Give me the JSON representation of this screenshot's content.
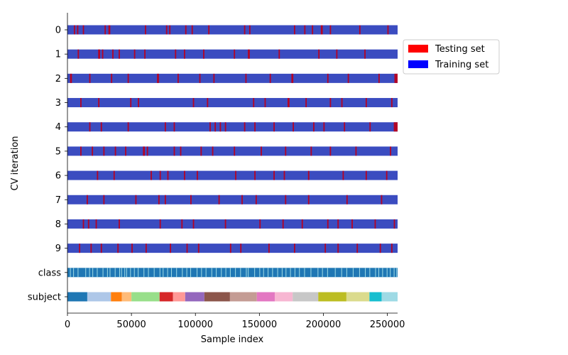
{
  "chart_data": {
    "type": "heatmap",
    "xlabel": "Sample index",
    "ylabel": "CV iteration",
    "xlim": [
      0,
      258000
    ],
    "xticks": [
      "0",
      "50000",
      "100000",
      "150000",
      "200000",
      "250000"
    ],
    "xtick_values": [
      0,
      50000,
      100000,
      150000,
      200000,
      250000
    ],
    "rows": [
      "0",
      "1",
      "2",
      "3",
      "4",
      "5",
      "6",
      "7",
      "8",
      "9",
      "class",
      "subject"
    ],
    "grid": false,
    "legend_position": "outside-right-top",
    "legend": [
      {
        "label": "Testing set",
        "color": "#ff0000"
      },
      {
        "label": "Training set",
        "color": "#0000ff"
      }
    ],
    "colors": {
      "training": "#3b4cc0",
      "testing": "#b40426",
      "class_base": "#1f77b4",
      "class_alt": "#9edae5"
    },
    "n_samples": 258000,
    "test_fraction": 0.1,
    "test_sets": [
      [
        [
          5000,
          6000
        ],
        [
          7500,
          8500
        ],
        [
          12000,
          13000
        ],
        [
          29000,
          30000
        ],
        [
          32000,
          33500
        ],
        [
          60500,
          61500
        ],
        [
          77000,
          78000
        ],
        [
          79500,
          80500
        ],
        [
          92000,
          93000
        ],
        [
          97000,
          98000
        ],
        [
          110000,
          111000
        ],
        [
          138000,
          139000
        ],
        [
          142000,
          143000
        ],
        [
          177000,
          178000
        ],
        [
          185000,
          186000
        ],
        [
          191000,
          192000
        ],
        [
          198000,
          199500
        ],
        [
          205000,
          206000
        ],
        [
          228000,
          229000
        ],
        [
          250000,
          251000
        ]
      ],
      [
        [
          8000,
          9000
        ],
        [
          24000,
          25500
        ],
        [
          27000,
          28000
        ],
        [
          35000,
          36000
        ],
        [
          40000,
          41000
        ],
        [
          52000,
          53000
        ],
        [
          60000,
          61000
        ],
        [
          84000,
          85000
        ],
        [
          91000,
          92000
        ],
        [
          106000,
          107000
        ],
        [
          130000,
          131000
        ],
        [
          141000,
          142500
        ],
        [
          165000,
          166000
        ],
        [
          196000,
          197000
        ],
        [
          210000,
          211000
        ],
        [
          232000,
          233000
        ]
      ],
      [
        [
          2000,
          3500
        ],
        [
          17000,
          18000
        ],
        [
          34000,
          35000
        ],
        [
          47000,
          48000
        ],
        [
          70000,
          71500
        ],
        [
          86000,
          87000
        ],
        [
          103000,
          104000
        ],
        [
          114000,
          115000
        ],
        [
          139000,
          140000
        ],
        [
          158000,
          159000
        ],
        [
          175000,
          176500
        ],
        [
          203000,
          204000
        ],
        [
          219000,
          220000
        ],
        [
          243000,
          244000
        ],
        [
          255500,
          258000
        ]
      ],
      [
        [
          10000,
          11000
        ],
        [
          24000,
          25000
        ],
        [
          49000,
          50000
        ],
        [
          55000,
          56000
        ],
        [
          98000,
          99000
        ],
        [
          109000,
          110000
        ],
        [
          145000,
          146000
        ],
        [
          154000,
          155000
        ],
        [
          172000,
          173500
        ],
        [
          186000,
          187000
        ],
        [
          205000,
          206000
        ],
        [
          214000,
          215000
        ],
        [
          233000,
          234000
        ],
        [
          253000,
          254000
        ]
      ],
      [
        [
          17000,
          18000
        ],
        [
          26000,
          27000
        ],
        [
          47000,
          48000
        ],
        [
          76000,
          77000
        ],
        [
          83000,
          84000
        ],
        [
          111000,
          112000
        ],
        [
          115000,
          116000
        ],
        [
          119000,
          120000
        ],
        [
          123000,
          124000
        ],
        [
          138000,
          139000
        ],
        [
          146000,
          147000
        ],
        [
          161000,
          162000
        ],
        [
          176000,
          177000
        ],
        [
          192000,
          193000
        ],
        [
          200000,
          201000
        ],
        [
          216000,
          217000
        ],
        [
          236000,
          237000
        ],
        [
          255000,
          258000
        ]
      ],
      [
        [
          10000,
          11000
        ],
        [
          19000,
          20000
        ],
        [
          28000,
          29000
        ],
        [
          37000,
          38000
        ],
        [
          45000,
          46000
        ],
        [
          59000,
          60500
        ],
        [
          62000,
          63000
        ],
        [
          83000,
          84000
        ],
        [
          88000,
          89000
        ],
        [
          104000,
          105000
        ],
        [
          113000,
          114000
        ],
        [
          130000,
          131000
        ],
        [
          151000,
          152000
        ],
        [
          170000,
          171000
        ],
        [
          190000,
          191000
        ],
        [
          205000,
          206000
        ],
        [
          225000,
          226000
        ],
        [
          252000,
          253000
        ]
      ],
      [
        [
          23000,
          24000
        ],
        [
          36000,
          37000
        ],
        [
          65000,
          66000
        ],
        [
          72000,
          73000
        ],
        [
          78000,
          79000
        ],
        [
          91000,
          92000
        ],
        [
          101000,
          102000
        ],
        [
          131000,
          132000
        ],
        [
          146000,
          147000
        ],
        [
          161000,
          162000
        ],
        [
          169000,
          170000
        ],
        [
          188000,
          189000
        ],
        [
          215000,
          216000
        ],
        [
          233000,
          234000
        ],
        [
          249000,
          250000
        ]
      ],
      [
        [
          15000,
          16000
        ],
        [
          28000,
          29000
        ],
        [
          53000,
          54000
        ],
        [
          71000,
          72000
        ],
        [
          76000,
          77000
        ],
        [
          96000,
          97000
        ],
        [
          118000,
          119000
        ],
        [
          136000,
          137000
        ],
        [
          147000,
          148000
        ],
        [
          170000,
          171000
        ],
        [
          188000,
          189000
        ],
        [
          218000,
          219000
        ],
        [
          245000,
          246000
        ]
      ],
      [
        [
          12000,
          13000
        ],
        [
          16000,
          17000
        ],
        [
          22000,
          23000
        ],
        [
          40000,
          41000
        ],
        [
          72000,
          73000
        ],
        [
          89000,
          90000
        ],
        [
          98000,
          99000
        ],
        [
          123000,
          124000
        ],
        [
          150000,
          151000
        ],
        [
          168000,
          169000
        ],
        [
          183000,
          184000
        ],
        [
          203000,
          204000
        ],
        [
          211000,
          212000
        ],
        [
          222000,
          223000
        ],
        [
          240000,
          241000
        ],
        [
          255000,
          256000
        ]
      ],
      [
        [
          9000,
          10000
        ],
        [
          18000,
          19000
        ],
        [
          26000,
          27000
        ],
        [
          39000,
          40000
        ],
        [
          50000,
          51000
        ],
        [
          61000,
          62000
        ],
        [
          80000,
          81000
        ],
        [
          93000,
          94000
        ],
        [
          102000,
          103000
        ],
        [
          127000,
          128000
        ],
        [
          135000,
          136000
        ],
        [
          157000,
          158000
        ],
        [
          177000,
          178000
        ],
        [
          201000,
          202000
        ],
        [
          211000,
          212000
        ],
        [
          226000,
          227000
        ],
        [
          244000,
          245000
        ],
        [
          253000,
          254000
        ]
      ]
    ],
    "class_alt_marks": [
      2000,
      4500,
      8000,
      14000,
      17000,
      19500,
      23000,
      27500,
      31000,
      33000,
      37000,
      40500,
      42000,
      44500,
      46000,
      49000,
      52000,
      55000,
      59500,
      63000,
      67500,
      72000,
      74500,
      78000,
      81000,
      85000,
      89500,
      93000,
      96000,
      101000,
      104500,
      108000,
      112500,
      116000,
      120000,
      123500,
      127000,
      131000,
      135000,
      139500,
      141000,
      146000,
      150000,
      153000,
      156500,
      160000,
      164000,
      167500,
      170500,
      174000,
      177500,
      181000,
      185000,
      190000,
      195500,
      199000,
      203000,
      209000,
      214000,
      218000,
      223000,
      228000,
      232500,
      236000,
      240500,
      243000,
      246000,
      249500,
      252000,
      255000,
      257000
    ],
    "subjects": [
      {
        "start": 0,
        "end": 15500,
        "color": "#1f77b4"
      },
      {
        "start": 15500,
        "end": 34000,
        "color": "#aec7e8"
      },
      {
        "start": 34000,
        "end": 42500,
        "color": "#ff7f0e"
      },
      {
        "start": 42500,
        "end": 50000,
        "color": "#ffbb78"
      },
      {
        "start": 50000,
        "end": 72000,
        "color": "#98df8a"
      },
      {
        "start": 72000,
        "end": 82500,
        "color": "#d62728"
      },
      {
        "start": 82500,
        "end": 92000,
        "color": "#ff9896"
      },
      {
        "start": 92000,
        "end": 107000,
        "color": "#9467bd"
      },
      {
        "start": 107000,
        "end": 127000,
        "color": "#8c564b"
      },
      {
        "start": 127000,
        "end": 148000,
        "color": "#c49c94"
      },
      {
        "start": 148000,
        "end": 162000,
        "color": "#e377c2"
      },
      {
        "start": 162000,
        "end": 176000,
        "color": "#f7b6d2"
      },
      {
        "start": 176000,
        "end": 196000,
        "color": "#c7c7c7"
      },
      {
        "start": 196000,
        "end": 218000,
        "color": "#bcbd22"
      },
      {
        "start": 218000,
        "end": 236000,
        "color": "#dbdb8d"
      },
      {
        "start": 236000,
        "end": 245500,
        "color": "#17becf"
      },
      {
        "start": 245500,
        "end": 258000,
        "color": "#9edae5"
      }
    ]
  }
}
